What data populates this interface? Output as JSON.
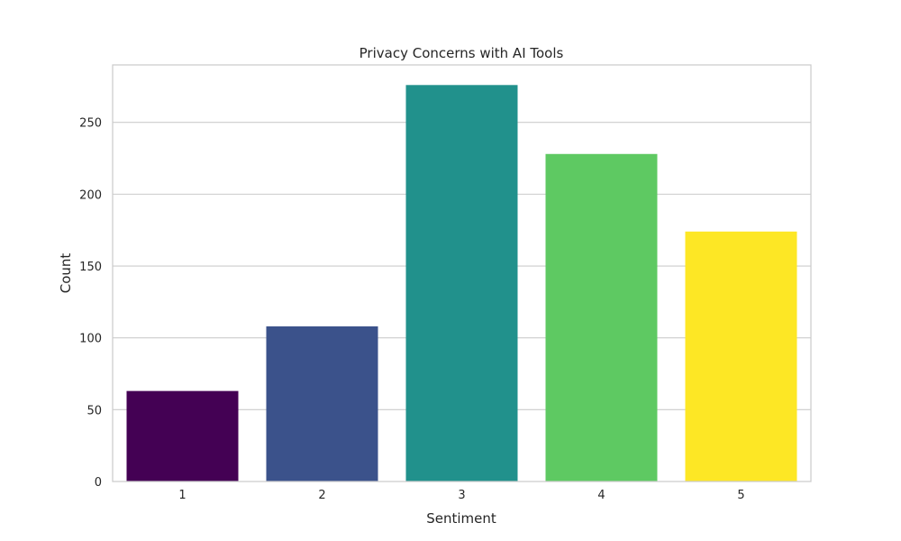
{
  "chart_data": {
    "type": "bar",
    "title": "Privacy Concerns with AI Tools",
    "xlabel": "Sentiment",
    "ylabel": "Count",
    "categories": [
      "1",
      "2",
      "3",
      "4",
      "5"
    ],
    "values": [
      63,
      108,
      276,
      228,
      174
    ],
    "colors": [
      "#440154",
      "#3b528b",
      "#21918c",
      "#5ec962",
      "#fde725"
    ],
    "ylim": [
      0,
      290
    ],
    "yticks": [
      0,
      50,
      100,
      150,
      200,
      250
    ],
    "grid": true,
    "grid_axis": "y",
    "grid_color": "#cccccc",
    "frame_color": "#cccccc",
    "legend": "none"
  }
}
